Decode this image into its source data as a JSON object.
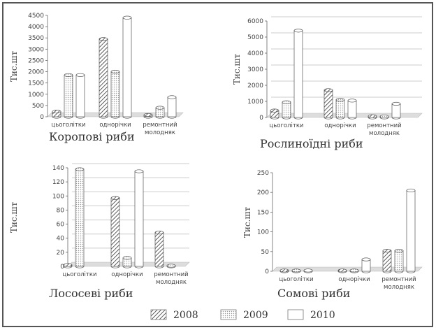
{
  "legend": [
    {
      "name": "2008",
      "pattern": "hatch"
    },
    {
      "name": "2009",
      "pattern": "dots"
    },
    {
      "name": "2010",
      "pattern": "plain"
    }
  ],
  "colors": {
    "frame": "#555555",
    "floor": "#dddddd",
    "grid": "#cccccc",
    "hatch": "#333333",
    "dots": "#999999",
    "bar_fill": "#ffffff"
  },
  "chart_data": [
    {
      "type": "bar",
      "title": "Коропові риби",
      "ylabel": "Тис.шт",
      "categories": [
        [
          "цьоголітки"
        ],
        [
          "однорічки"
        ],
        [
          "ремонтний",
          "молодняк"
        ]
      ],
      "yticks": [
        0,
        500,
        1000,
        1500,
        2000,
        2500,
        3000,
        3500,
        4000,
        4500
      ],
      "ylim": [
        0,
        4500
      ],
      "grid": false,
      "series": [
        {
          "name": "2008",
          "values": [
            230,
            3450,
            80
          ]
        },
        {
          "name": "2009",
          "values": [
            1850,
            2000,
            400
          ]
        },
        {
          "name": "2010",
          "values": [
            1850,
            4400,
            870
          ]
        }
      ]
    },
    {
      "type": "bar",
      "title": "Рослиноїдні риби",
      "ylabel": "Тис.шт",
      "categories": [
        [
          "цьоголітки"
        ],
        [
          "однорічки"
        ],
        [
          "ремонтний",
          "молодняк"
        ]
      ],
      "yticks": [
        0,
        1000,
        2000,
        3000,
        4000,
        5000,
        6000
      ],
      "ylim": [
        0,
        6000
      ],
      "grid": true,
      "series": [
        {
          "name": "2008",
          "values": [
            430,
            1700,
            80
          ]
        },
        {
          "name": "2009",
          "values": [
            950,
            1100,
            60
          ]
        },
        {
          "name": "2010",
          "values": [
            5400,
            1050,
            850
          ]
        }
      ]
    },
    {
      "type": "bar",
      "title": "Лососеві риби",
      "ylabel": "Тис.шт",
      "categories": [
        [
          "цьоголітки"
        ],
        [
          "однорічки"
        ],
        [
          "ремонтний",
          "молодняк"
        ]
      ],
      "yticks": [
        0,
        20,
        40,
        60,
        80,
        100,
        120,
        140
      ],
      "ylim": [
        0,
        140
      ],
      "grid": true,
      "series": [
        {
          "name": "2008",
          "values": [
            2,
            97,
            48
          ]
        },
        {
          "name": "2009",
          "values": [
            138,
            12,
            1
          ]
        },
        {
          "name": "2010",
          "values": [
            0,
            135,
            0
          ]
        }
      ]
    },
    {
      "type": "bar",
      "title": "Сомові риби",
      "ylabel": "Тис.шт",
      "categories": [
        [
          "цьоголітки"
        ],
        [
          "однорічки"
        ],
        [
          "ремонтний",
          "молодняк"
        ]
      ],
      "yticks": [
        0,
        50,
        100,
        150,
        200,
        250
      ],
      "ylim": [
        0,
        250
      ],
      "grid": false,
      "series": [
        {
          "name": "2008",
          "values": [
            2,
            2,
            52
          ]
        },
        {
          "name": "2009",
          "values": [
            2,
            2,
            52
          ]
        },
        {
          "name": "2010",
          "values": [
            2,
            30,
            205
          ]
        }
      ]
    }
  ]
}
